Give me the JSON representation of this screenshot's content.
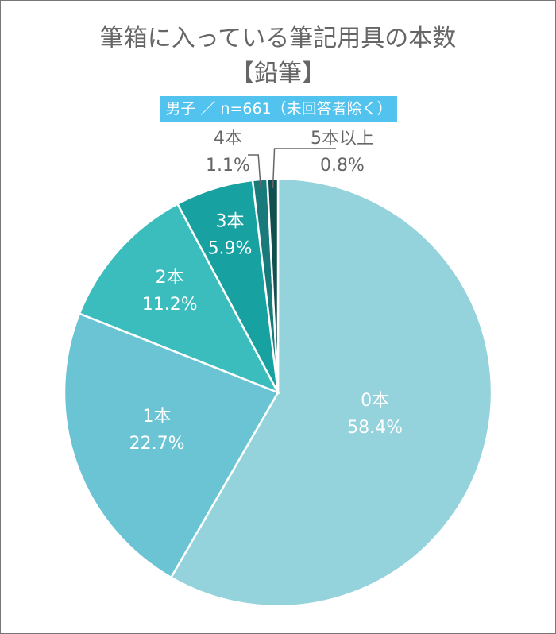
{
  "title_line1": "筆箱に入っている筆記用具の本数",
  "title_line2": "【鉛筆】",
  "badge": "男子 ／ n=661（未回答者除く）",
  "chart_data": {
    "type": "pie",
    "title": "筆箱に入っている筆記用具の本数【鉛筆】",
    "subtitle": "男子 ／ n=661（未回答者除く）",
    "categories": [
      "0本",
      "1本",
      "2本",
      "3本",
      "4本",
      "5本以上"
    ],
    "values": [
      58.4,
      22.7,
      11.2,
      5.9,
      1.1,
      0.8
    ],
    "labels": [
      "58.4%",
      "22.7%",
      "11.2%",
      "5.9%",
      "1.1%",
      "0.8%"
    ],
    "colors": [
      "#94d2dc",
      "#6ac4d3",
      "#3bbcbd",
      "#17a1a0",
      "#187a7a",
      "#104f4f"
    ],
    "start": "top",
    "direction": "clockwise"
  }
}
